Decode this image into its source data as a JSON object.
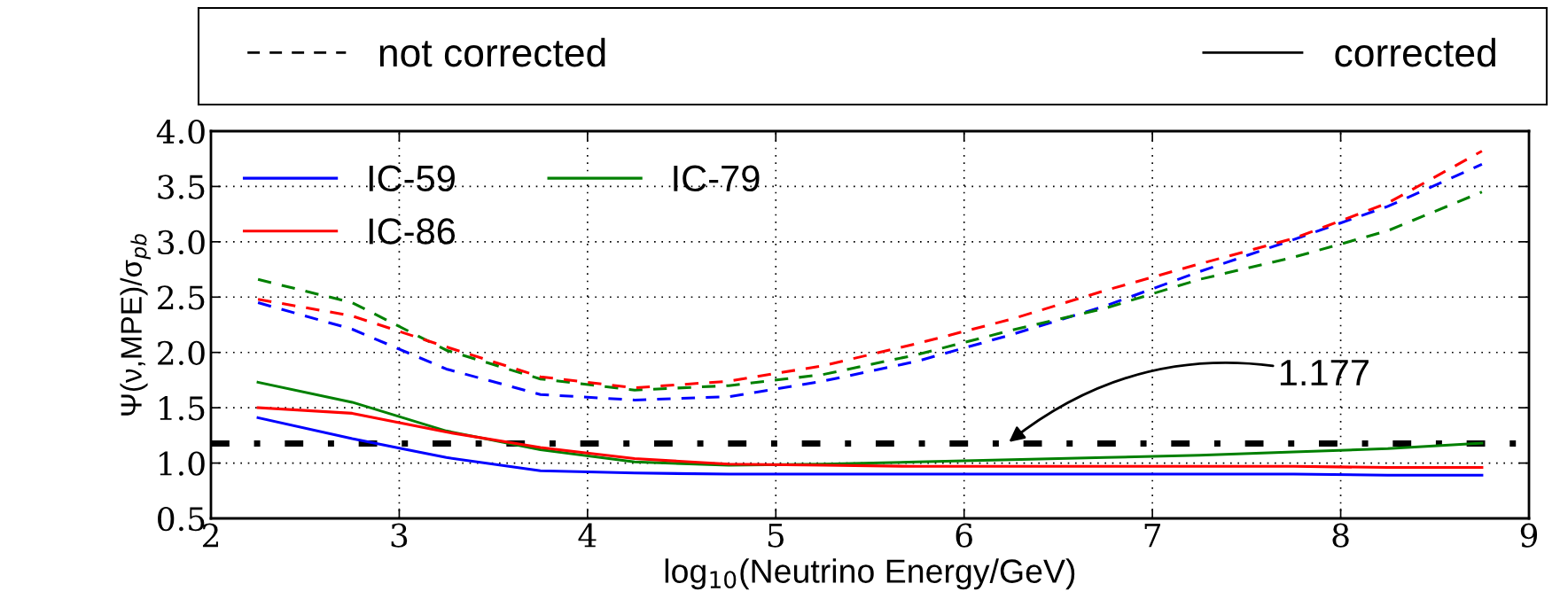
{
  "chart_data": {
    "type": "line",
    "xlabel": "log$_{10}$(Neutrino Energy/GeV)",
    "ylabel": "Ψ(ν,MPE)/σ$_{pb}$",
    "x": [
      2.25,
      2.75,
      3.25,
      3.75,
      4.25,
      4.75,
      5.25,
      5.75,
      6.25,
      6.75,
      7.25,
      7.75,
      8.25,
      8.75
    ],
    "xlim": [
      2,
      9
    ],
    "xticks": [
      2,
      3,
      4,
      5,
      6,
      7,
      8,
      9
    ],
    "ylim": [
      0.5,
      4.0
    ],
    "yticks": [
      {
        "value": 0.5,
        "label": "0.5"
      },
      {
        "value": 1.0,
        "label": "1.0"
      },
      {
        "value": 1.5,
        "label": "1.5"
      },
      {
        "value": 2.0,
        "label": "2.0"
      },
      {
        "value": 2.5,
        "label": "2.5"
      },
      {
        "value": 3.0,
        "label": "3.0"
      },
      {
        "value": 3.5,
        "label": "3.5"
      },
      {
        "value": 4.0,
        "label": "4.0"
      }
    ],
    "grid": true,
    "legend": "top left",
    "series": [
      {
        "name": "IC-59",
        "color": "#0000ff",
        "line_style": "solid",
        "values": [
          1.41,
          1.22,
          1.05,
          0.93,
          0.91,
          0.9,
          0.9,
          0.9,
          0.9,
          0.9,
          0.9,
          0.9,
          0.89,
          0.89
        ]
      },
      {
        "name": "IC-79",
        "color": "#008000",
        "line_style": "solid",
        "values": [
          1.73,
          1.55,
          1.29,
          1.12,
          1.01,
          0.98,
          0.99,
          1.01,
          1.03,
          1.05,
          1.07,
          1.1,
          1.13,
          1.18
        ]
      },
      {
        "name": "IC-86",
        "color": "#ff0000",
        "line_style": "solid",
        "values": [
          1.5,
          1.45,
          1.28,
          1.14,
          1.04,
          0.99,
          0.98,
          0.97,
          0.97,
          0.97,
          0.97,
          0.97,
          0.96,
          0.96
        ]
      },
      {
        "color": "#0000ff",
        "line_style": "dashed",
        "values": [
          2.45,
          2.21,
          1.85,
          1.62,
          1.57,
          1.6,
          1.74,
          1.92,
          2.16,
          2.42,
          2.73,
          3.02,
          3.32,
          3.7
        ]
      },
      {
        "color": "#008000",
        "line_style": "dashed",
        "values": [
          2.66,
          2.45,
          2.02,
          1.76,
          1.66,
          1.7,
          1.8,
          1.98,
          2.2,
          2.4,
          2.66,
          2.86,
          3.1,
          3.45
        ]
      },
      {
        "color": "#ff0000",
        "line_style": "dashed",
        "values": [
          2.48,
          2.33,
          2.05,
          1.78,
          1.68,
          1.74,
          1.88,
          2.08,
          2.3,
          2.56,
          2.8,
          3.03,
          3.35,
          3.82
        ]
      }
    ],
    "ref_lines": [
      {
        "axis": "y",
        "value": 1.177,
        "color": "#000000",
        "line_style": "dashdot",
        "label": "1.177"
      }
    ],
    "annotations": [
      "not corrected",
      "corrected"
    ]
  }
}
